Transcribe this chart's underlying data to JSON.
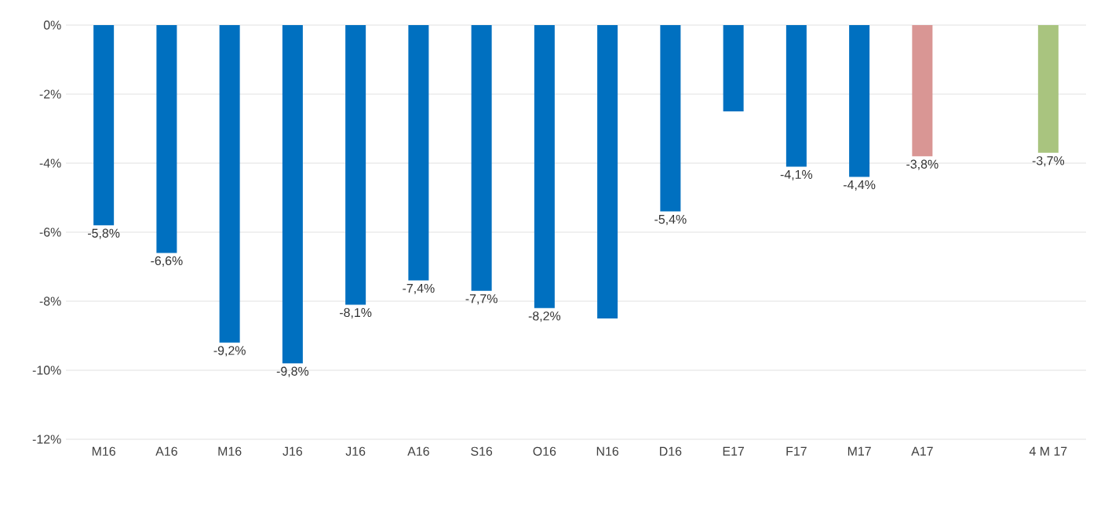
{
  "chart_data": {
    "type": "bar",
    "categories": [
      "M16",
      "A16",
      "M16",
      "J16",
      "J16",
      "A16",
      "S16",
      "O16",
      "N16",
      "D16",
      "E17",
      "F17",
      "M17",
      "A17",
      null,
      "4 M 17"
    ],
    "values": [
      -5.8,
      -6.6,
      -9.2,
      -9.8,
      -8.1,
      -7.4,
      -7.7,
      -8.2,
      -8.5,
      -5.4,
      -2.5,
      -4.1,
      -4.4,
      -3.8,
      null,
      -3.7
    ],
    "colors": [
      "#0070c0",
      "#0070c0",
      "#0070c0",
      "#0070c0",
      "#0070c0",
      "#0070c0",
      "#0070c0",
      "#0070c0",
      "#0070c0",
      "#0070c0",
      "#0070c0",
      "#0070c0",
      "#0070c0",
      "#d99694",
      "#0070c0",
      "#a9c47f"
    ],
    "value_labels": [
      "-5,8%",
      "-6,6%",
      "-9,2%",
      "-9,8%",
      "-8,1%",
      "-7,4%",
      "-7,7%",
      "-8,2%",
      null,
      "-5,4%",
      null,
      "-4,1%",
      "-4,4%",
      "-3,8%",
      null,
      "-3,7%"
    ],
    "ylim": [
      -12,
      0
    ],
    "yticks": [
      {
        "value": 0,
        "label": "0%"
      },
      {
        "value": -2,
        "label": "-2%"
      },
      {
        "value": -4,
        "label": "-4%"
      },
      {
        "value": -6,
        "label": "-6%"
      },
      {
        "value": -8,
        "label": "-8%"
      },
      {
        "value": -10,
        "label": "-10%"
      },
      {
        "value": -12,
        "label": "-12%"
      }
    ],
    "grid": "y"
  }
}
